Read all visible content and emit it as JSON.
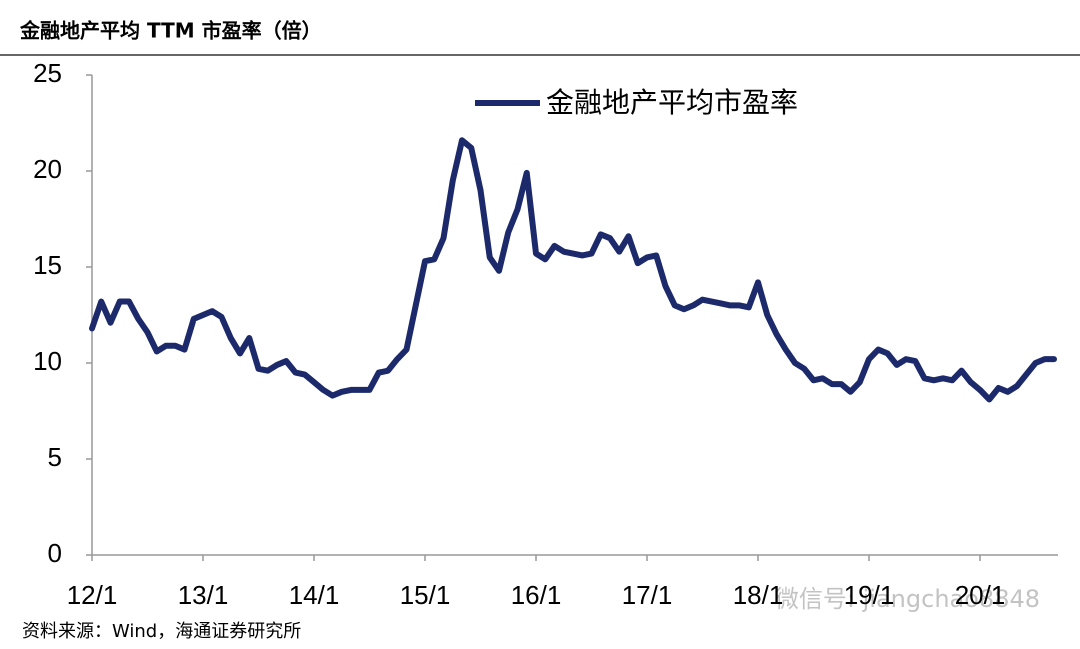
{
  "chart_data": {
    "type": "line",
    "title": "金融地产平均 TTM 市盈率（倍）",
    "source": "资料来源：Wind，海通证券研究所",
    "watermark": "微信号: jiangchao8848",
    "categories": [
      "12/1",
      null,
      null,
      null,
      null,
      null,
      null,
      null,
      null,
      null,
      null,
      null,
      "13/1",
      null,
      null,
      null,
      null,
      null,
      null,
      null,
      null,
      null,
      null,
      null,
      "14/1",
      null,
      null,
      null,
      null,
      null,
      null,
      null,
      null,
      null,
      null,
      null,
      "15/1",
      null,
      null,
      null,
      null,
      null,
      null,
      null,
      null,
      null,
      null,
      null,
      "16/1",
      null,
      null,
      null,
      null,
      null,
      null,
      null,
      null,
      null,
      null,
      null,
      "17/1",
      null,
      null,
      null,
      null,
      null,
      null,
      null,
      null,
      null,
      null,
      null,
      "18/1",
      null,
      null,
      null,
      null,
      null,
      null,
      null,
      null,
      null,
      null,
      null,
      "19/1",
      null,
      null,
      null,
      null,
      null,
      null,
      null,
      null,
      null,
      null,
      null,
      "20/1",
      null,
      null,
      null,
      null,
      null,
      null,
      null,
      null
    ],
    "series": [
      {
        "name": "金融地产平均市盈率",
        "color": "#1c2a6b",
        "values": [
          11.8,
          13.2,
          12.1,
          13.2,
          13.2,
          12.3,
          11.6,
          10.6,
          10.9,
          10.9,
          10.7,
          12.3,
          12.5,
          12.7,
          12.4,
          11.3,
          10.5,
          11.3,
          9.7,
          9.6,
          9.9,
          10.1,
          9.5,
          9.4,
          9.0,
          8.6,
          8.3,
          8.5,
          8.6,
          8.6,
          8.6,
          9.5,
          9.6,
          10.2,
          10.7,
          13.0,
          15.3,
          15.4,
          16.5,
          19.5,
          21.6,
          21.2,
          19.0,
          15.5,
          14.8,
          16.8,
          18.0,
          19.9,
          15.7,
          15.4,
          16.1,
          15.8,
          15.7,
          15.6,
          15.7,
          16.7,
          16.5,
          15.8,
          16.6,
          15.2,
          15.5,
          15.6,
          14.0,
          13.0,
          12.8,
          13.0,
          13.3,
          13.2,
          13.1,
          13.0,
          13.0,
          12.9,
          14.2,
          12.5,
          11.5,
          10.7,
          10.0,
          9.7,
          9.1,
          9.2,
          8.9,
          8.9,
          8.5,
          9.0,
          10.2,
          10.7,
          10.5,
          9.9,
          10.2,
          10.1,
          9.2,
          9.1,
          9.2,
          9.1,
          9.6,
          9.0,
          8.6,
          8.1,
          8.7,
          8.5,
          8.8,
          9.4,
          10.0,
          10.2,
          10.2
        ]
      }
    ],
    "ylim": [
      0,
      25
    ],
    "yticks": [
      0,
      5,
      10,
      15,
      20,
      25
    ],
    "grid": false
  }
}
